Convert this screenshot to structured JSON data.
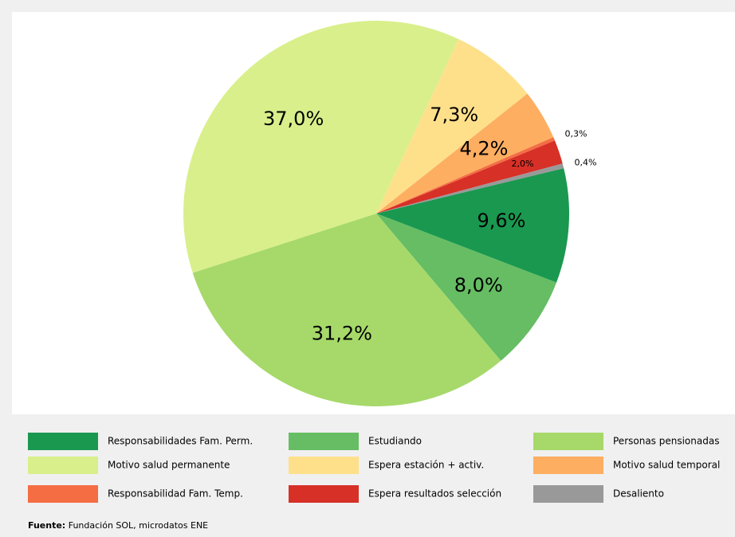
{
  "chart_data": {
    "type": "pie",
    "categories": [
      "Responsabilidades Fam. Perm.",
      "Estudiando",
      "Personas pensionadas",
      "Motivo salud permanente",
      "Espera estación + activ.",
      "Motivo salud temporal",
      "Responsabilidad Fam. Temp.",
      "Espera resultados selección",
      "Desaliento"
    ],
    "values": [
      9.6,
      8.0,
      31.2,
      37.0,
      7.3,
      4.2,
      0.3,
      2.0,
      0.4
    ],
    "value_labels": [
      "9,6%",
      "8,0%",
      "31,2%",
      "37,0%",
      "7,3%",
      "4,2%",
      "0,3%",
      "2,0%",
      "0,4%"
    ],
    "colors": [
      "#1a9850",
      "#66bd63",
      "#a6d96a",
      "#d9ef8b",
      "#fee08b",
      "#fdae61",
      "#f46d43",
      "#d73027",
      "#999999"
    ],
    "source": {
      "label": "Fuente:",
      "text": "Fundación SOL, microdatos ENE"
    }
  }
}
